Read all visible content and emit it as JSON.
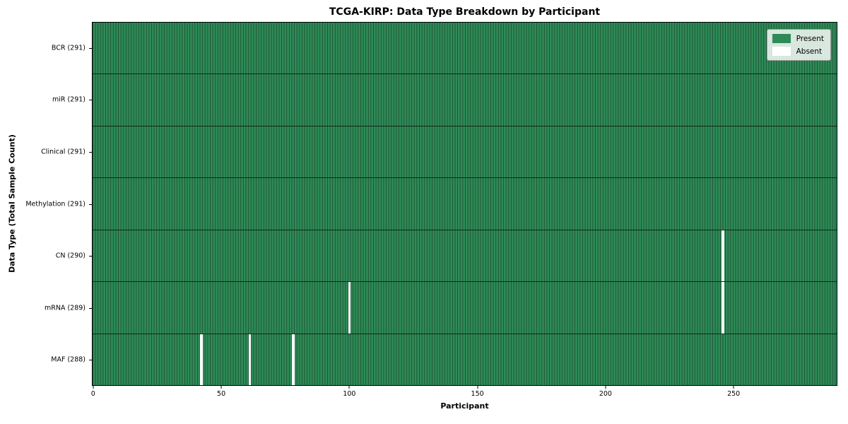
{
  "chart_data": {
    "type": "heatmap",
    "title": "TCGA-KIRP: Data Type Breakdown by Participant",
    "xlabel": "Participant",
    "ylabel": "Data Type (Total Sample Count)",
    "n_participants": 291,
    "x_ticks": [
      0,
      50,
      100,
      150,
      200,
      250
    ],
    "rows": [
      {
        "name": "BCR",
        "label": "BCR (291)",
        "total": 291,
        "absent_participants": []
      },
      {
        "name": "miR",
        "label": "miR (291)",
        "total": 291,
        "absent_participants": []
      },
      {
        "name": "Clinical",
        "label": "Clinical (291)",
        "total": 291,
        "absent_participants": []
      },
      {
        "name": "Methylation",
        "label": "Methylation (291)",
        "total": 291,
        "absent_participants": []
      },
      {
        "name": "CN",
        "label": "CN (290)",
        "total": 290,
        "absent_participants": [
          246
        ]
      },
      {
        "name": "mRNA",
        "label": "mRNA (289)",
        "total": 289,
        "absent_participants": [
          100,
          246
        ]
      },
      {
        "name": "MAF",
        "label": "MAF (288)",
        "total": 288,
        "absent_participants": [
          42,
          61,
          78
        ]
      }
    ],
    "legend": [
      {
        "label": "Present",
        "color": "#2e8b57"
      },
      {
        "label": "Absent",
        "color": "#ffffff"
      }
    ],
    "colors": {
      "present": "#2e8b57",
      "absent": "#ffffff",
      "bar_edge": "#1e5236",
      "row_divider": "#122918",
      "plot_border": "#000000"
    },
    "legend_position": "upper right",
    "grid": false
  }
}
